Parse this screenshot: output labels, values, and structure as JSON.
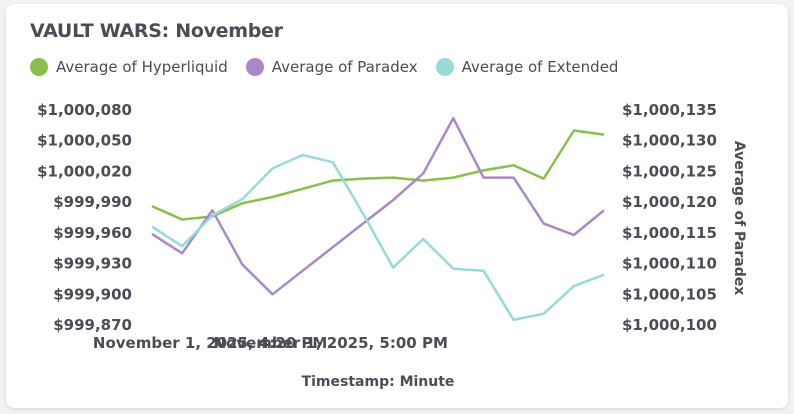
{
  "chart_data": {
    "type": "line",
    "title": "VAULT WARS: November",
    "xlabel": "Timestamp: Minute",
    "ylabel_right": "Average of Paradex",
    "x_tick_labels": [
      "November 1, 2025, 4:20 PM",
      "November 1, 2025, 5:00 PM"
    ],
    "x_tick_indices": [
      1,
      5
    ],
    "x_count": 16,
    "left_axis": {
      "ticks": [
        "$1,000,080",
        "$1,000,050",
        "$1,000,020",
        "$999,990",
        "$999,960",
        "$999,930",
        "$999,900",
        "$999,870"
      ],
      "ylim": [
        999870,
        1000080
      ]
    },
    "right_axis": {
      "ticks": [
        "$1,000,135",
        "$1,000,130",
        "$1,000,125",
        "$1,000,120",
        "$1,000,115",
        "$1,000,110",
        "$1,000,105",
        "$1,000,100"
      ],
      "ylim": [
        1000100,
        1000135
      ]
    },
    "series": [
      {
        "name": "Average of Hyperliquid",
        "axis": "left",
        "color": "#88bf4d",
        "values": [
          999986,
          999973,
          999976,
          999989,
          999995,
          1000003,
          1000011,
          1000013,
          1000014,
          1000011,
          1000014,
          1000021,
          1000026,
          1000013,
          1000060,
          1000056
        ]
      },
      {
        "name": "Average of Paradex",
        "axis": "left",
        "color": "#a989c5",
        "values": [
          999959,
          999940,
          999982,
          999929,
          999900,
          999923,
          999946,
          999969,
          999992,
          1000018,
          1000072,
          1000014,
          1000014,
          999969,
          999958,
          999982
        ]
      },
      {
        "name": "Average of Extended",
        "axis": "left",
        "color": "#98d9d9",
        "values": [
          999966,
          999947,
          999977,
          999993,
          1000023,
          1000036,
          1000029,
          999979,
          999926,
          999954,
          999925,
          999923,
          999875,
          999881,
          999908,
          999919
        ]
      }
    ]
  }
}
